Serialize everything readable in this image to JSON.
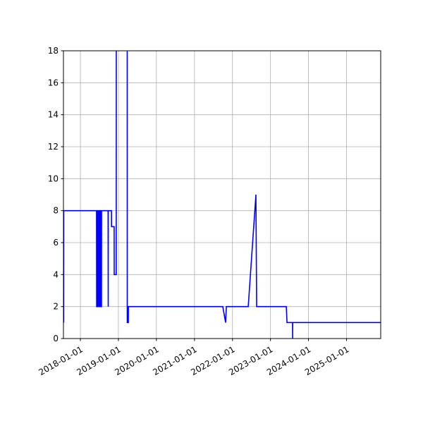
{
  "chart_data": {
    "type": "line",
    "title": "",
    "xlabel": "",
    "ylabel": "",
    "xlim": [
      "2017-07-22",
      "2025-11-25"
    ],
    "ylim": [
      0,
      18
    ],
    "grid": true,
    "line_color": "#0000ff",
    "x_ticks": [
      "2018-01-01",
      "2019-01-01",
      "2020-01-01",
      "2021-01-01",
      "2022-01-01",
      "2023-01-01",
      "2024-01-01",
      "2025-01-01"
    ],
    "y_ticks": [
      "0",
      "2",
      "4",
      "6",
      "8",
      "10",
      "12",
      "14",
      "16",
      "18"
    ],
    "series": [
      {
        "points": [
          [
            "2017-07-24",
            1
          ],
          [
            "2017-07-25",
            8
          ],
          [
            "2018-06-05",
            8
          ],
          [
            "2018-06-06",
            2
          ],
          [
            "2018-06-12",
            2
          ],
          [
            "2018-06-13",
            8
          ],
          [
            "2018-06-17",
            8
          ],
          [
            "2018-06-18",
            2
          ],
          [
            "2018-06-24",
            2
          ],
          [
            "2018-06-25",
            8
          ],
          [
            "2018-06-30",
            8
          ],
          [
            "2018-07-01",
            2
          ],
          [
            "2018-07-07",
            2
          ],
          [
            "2018-07-08",
            8
          ],
          [
            "2018-07-13",
            8
          ],
          [
            "2018-07-14",
            2
          ],
          [
            "2018-07-22",
            2
          ],
          [
            "2018-07-23",
            8
          ],
          [
            "2018-09-24",
            8
          ],
          [
            "2018-09-25",
            2
          ],
          [
            "2018-09-26",
            8
          ],
          [
            "2018-10-26",
            8
          ],
          [
            "2018-10-27",
            7
          ],
          [
            "2018-11-21",
            7
          ],
          [
            "2018-11-22",
            4
          ],
          [
            "2018-12-11",
            4
          ],
          [
            "2018-12-12",
            30
          ],
          [
            "2019-03-26",
            30
          ],
          [
            "2019-03-27",
            1
          ],
          [
            "2019-04-06",
            1
          ],
          [
            "2019-04-07",
            2
          ],
          [
            "2021-09-30",
            2
          ],
          [
            "2021-10-27",
            1
          ],
          [
            "2021-11-03",
            2
          ],
          [
            "2022-06-01",
            2
          ],
          [
            "2022-08-14",
            9
          ],
          [
            "2022-08-21",
            2
          ],
          [
            "2023-06-02",
            2
          ],
          [
            "2023-06-09",
            1
          ],
          [
            "2023-08-01",
            1
          ],
          [
            "2023-08-02",
            0
          ],
          [
            "2023-08-03",
            1
          ],
          [
            "2025-11-25",
            1
          ]
        ]
      }
    ]
  }
}
